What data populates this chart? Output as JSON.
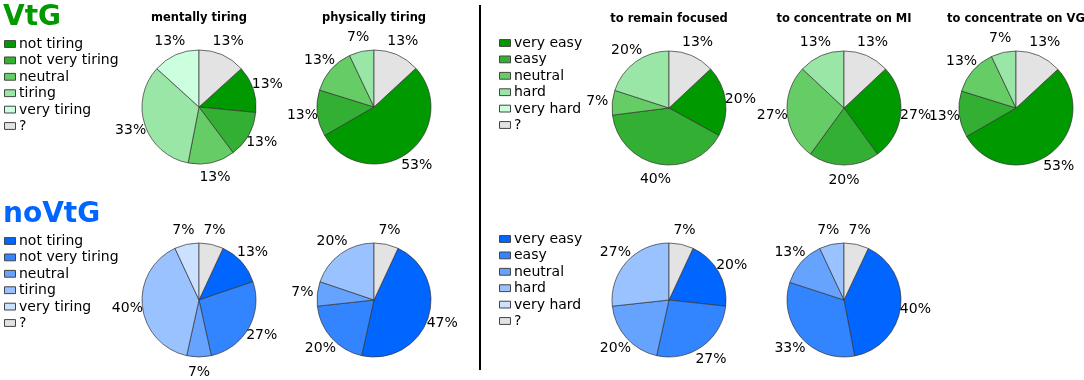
{
  "chart_data": [
    {
      "type": "pie",
      "title": "mentally tiring",
      "legend": "left",
      "legend_title": "VtG",
      "categories": [
        "not tiring",
        "not very tiring",
        "neutral",
        "tiring",
        "very tiring",
        "?"
      ],
      "values": [
        13,
        13,
        13,
        33,
        13,
        13
      ],
      "value_labels": [
        "13%",
        "13%",
        "13%",
        "33%",
        "13%",
        "13%"
      ],
      "colors": [
        "#009900",
        "#33b033",
        "#66cc66",
        "#99e6a6",
        "#ccffdd",
        "#e3e3e3"
      ]
    },
    {
      "type": "pie",
      "title": "physically tiring",
      "categories": [
        null,
        null,
        null,
        null,
        null,
        null
      ],
      "values": [
        53,
        13,
        13,
        7,
        null,
        13
      ],
      "value_labels": [
        "53%",
        "13%",
        "13%",
        "7%",
        null,
        "13%"
      ],
      "colors": [
        "#009900",
        "#33b033",
        "#66cc66",
        "#99e6a6",
        "#ccffdd",
        "#e3e3e3"
      ]
    },
    {
      "type": "pie",
      "title": "to remain focused",
      "legend": "left",
      "categories": [
        "very easy",
        "easy",
        "neutral",
        "hard",
        "very hard",
        "?"
      ],
      "values": [
        20,
        40,
        7,
        20,
        null,
        13
      ],
      "value_labels": [
        "20%",
        "40%",
        "7%",
        "20%",
        null,
        "13%"
      ],
      "colors": [
        "#009900",
        "#33b033",
        "#66cc66",
        "#99e6a6",
        "#ccffdd",
        "#e3e3e3"
      ]
    },
    {
      "type": "pie",
      "title": "to concentrate on MI",
      "categories": [
        null,
        null,
        null,
        null,
        null,
        null
      ],
      "values": [
        27,
        20,
        27,
        13,
        null,
        13
      ],
      "value_labels": [
        "27%",
        "20%",
        "27%",
        "13%",
        null,
        "13%"
      ],
      "colors": [
        "#009900",
        "#33b033",
        "#66cc66",
        "#99e6a6",
        "#ccffdd",
        "#e3e3e3"
      ]
    },
    {
      "type": "pie",
      "title": "to concentrate on VG",
      "categories": [
        null,
        null,
        null,
        null,
        null,
        null
      ],
      "values": [
        53,
        13,
        13,
        7,
        null,
        13
      ],
      "value_labels": [
        "53%",
        "13%",
        "13%",
        "7%",
        null,
        "13%"
      ],
      "colors": [
        "#009900",
        "#33b033",
        "#66cc66",
        "#99e6a6",
        "#ccffdd",
        "#e3e3e3"
      ]
    },
    {
      "type": "pie",
      "legend": "left",
      "legend_title": "noVtG",
      "categories": [
        "not tiring",
        "not very tiring",
        "neutral",
        "tiring",
        "very tiring",
        "?"
      ],
      "values": [
        13,
        27,
        7,
        40,
        7,
        7
      ],
      "value_labels": [
        "13%",
        "27%",
        "7%",
        "40%",
        "7%",
        "7%"
      ],
      "colors": [
        "#0066ff",
        "#3385ff",
        "#66a3ff",
        "#99c2ff",
        "#cce0ff",
        "#e3e3e3"
      ]
    },
    {
      "type": "pie",
      "categories": [
        null,
        null,
        null,
        null,
        null,
        null
      ],
      "values": [
        47,
        20,
        7,
        20,
        null,
        7
      ],
      "value_labels": [
        "47%",
        "20%",
        "7%",
        "20%",
        null,
        "7%"
      ],
      "colors": [
        "#0066ff",
        "#3385ff",
        "#66a3ff",
        "#99c2ff",
        "#cce0ff",
        "#e3e3e3"
      ]
    },
    {
      "type": "pie",
      "legend": "left",
      "categories": [
        "very easy",
        "easy",
        "neutral",
        "hard",
        "very hard",
        "?"
      ],
      "values": [
        20,
        27,
        20,
        27,
        null,
        7
      ],
      "value_labels": [
        "20%",
        "27%",
        "20%",
        "27%",
        null,
        "7%"
      ],
      "colors": [
        "#0066ff",
        "#3385ff",
        "#66a3ff",
        "#99c2ff",
        "#cce0ff",
        "#e3e3e3"
      ]
    },
    {
      "type": "pie",
      "categories": [
        null,
        null,
        null,
        null,
        null,
        null
      ],
      "values": [
        40,
        33,
        13,
        7,
        null,
        7
      ],
      "value_labels": [
        "40%",
        "33%",
        "13%",
        "7%",
        null,
        "7%"
      ],
      "colors": [
        "#0066ff",
        "#3385ff",
        "#66a3ff",
        "#99c2ff",
        "#cce0ff",
        "#e3e3e3"
      ]
    }
  ]
}
